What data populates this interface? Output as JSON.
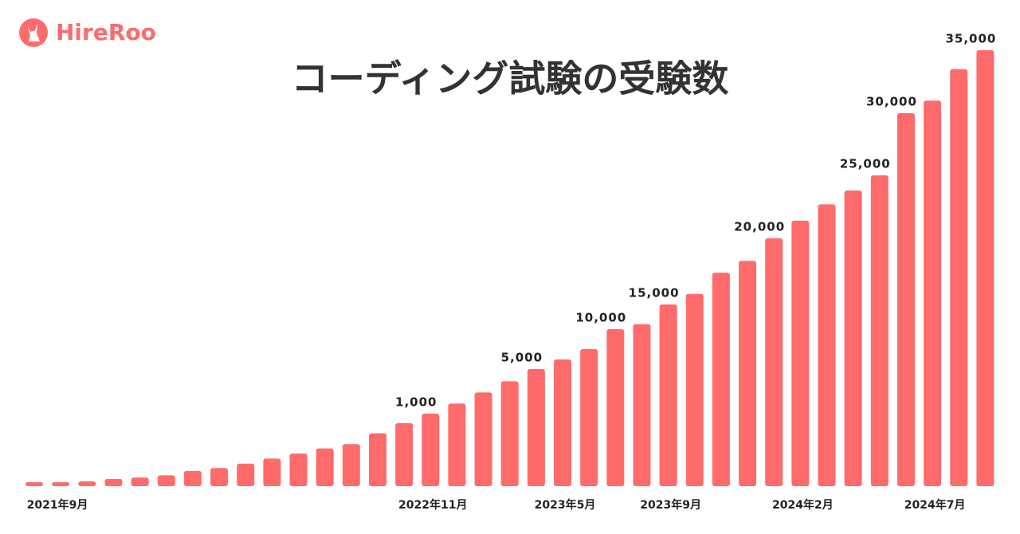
{
  "logo": "HireRoo",
  "chart_data": {
    "type": "bar",
    "title": "コーディング試験の受験数",
    "color": "#ff6b6b",
    "categories": [
      "2021年9月",
      null,
      null,
      null,
      null,
      null,
      null,
      null,
      null,
      null,
      null,
      null,
      null,
      null,
      null,
      "2022年11月",
      null,
      null,
      null,
      null,
      "2023年5月",
      null,
      null,
      null,
      "2023年9月",
      null,
      null,
      null,
      null,
      "2024年2月",
      null,
      null,
      null,
      null,
      "2024年7月",
      null,
      null
    ],
    "values": [
      55,
      55,
      66,
      100,
      120,
      150,
      210,
      250,
      310,
      380,
      450,
      520,
      580,
      730,
      870,
      1000,
      1900,
      2900,
      3900,
      5000,
      6200,
      7500,
      10000,
      11000,
      15000,
      15800,
      17400,
      18300,
      20000,
      21400,
      22700,
      23800,
      25000,
      30000,
      31000,
      33500,
      35000
    ],
    "value_labels": [
      null,
      null,
      null,
      null,
      null,
      null,
      null,
      null,
      null,
      null,
      null,
      null,
      null,
      null,
      null,
      "1,000",
      null,
      null,
      null,
      "5,000",
      null,
      null,
      "10,000",
      null,
      "15,000",
      null,
      null,
      null,
      "20,000",
      null,
      null,
      null,
      "25,000",
      "30,000",
      null,
      null,
      "35,000"
    ]
  }
}
